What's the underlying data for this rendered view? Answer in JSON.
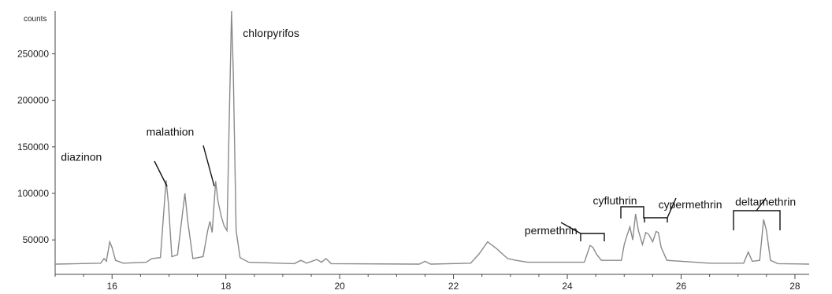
{
  "chart_data": {
    "type": "line",
    "title": "",
    "xlabel": "",
    "ylabel": "counts",
    "xlim": [
      15.0,
      28.25
    ],
    "ylim": [
      13000,
      296000
    ],
    "x_ticks": [
      16,
      18,
      20,
      22,
      24,
      26,
      28
    ],
    "y_ticks": [
      50000,
      100000,
      150000,
      200000,
      250000
    ],
    "y_tick_labels": [
      "50000",
      "100000",
      "150000",
      "200000",
      "250000"
    ],
    "grid": false,
    "line_color": "#8a8a8a",
    "series": [
      {
        "values": [
          [
            15.0,
            24000
          ],
          [
            15.4,
            24500
          ],
          [
            15.8,
            25000
          ],
          [
            15.86,
            30000
          ],
          [
            15.9,
            27000
          ],
          [
            15.96,
            48000
          ],
          [
            16.0,
            42000
          ],
          [
            16.06,
            28000
          ],
          [
            16.2,
            25000
          ],
          [
            16.6,
            26000
          ],
          [
            16.7,
            30000
          ],
          [
            16.85,
            31000
          ],
          [
            16.95,
            114000
          ],
          [
            16.99,
            90000
          ],
          [
            17.05,
            32000
          ],
          [
            17.15,
            34000
          ],
          [
            17.28,
            100000
          ],
          [
            17.33,
            70000
          ],
          [
            17.42,
            30000
          ],
          [
            17.6,
            32000
          ],
          [
            17.68,
            60000
          ],
          [
            17.72,
            70000
          ],
          [
            17.76,
            58000
          ],
          [
            17.82,
            113000
          ],
          [
            17.86,
            92000
          ],
          [
            17.92,
            75000
          ],
          [
            17.97,
            65000
          ],
          [
            18.02,
            60000
          ],
          [
            18.06,
            180000
          ],
          [
            18.1,
            296000
          ],
          [
            18.13,
            230000
          ],
          [
            18.18,
            60000
          ],
          [
            18.25,
            31000
          ],
          [
            18.4,
            26000
          ],
          [
            19.2,
            24500
          ],
          [
            19.32,
            28000
          ],
          [
            19.42,
            25000
          ],
          [
            19.6,
            29000
          ],
          [
            19.68,
            26000
          ],
          [
            19.76,
            30000
          ],
          [
            19.85,
            24500
          ],
          [
            21.4,
            24000
          ],
          [
            21.5,
            27000
          ],
          [
            21.6,
            24000
          ],
          [
            22.3,
            25000
          ],
          [
            22.45,
            35000
          ],
          [
            22.6,
            48000
          ],
          [
            22.75,
            41000
          ],
          [
            22.95,
            30000
          ],
          [
            23.1,
            28000
          ],
          [
            23.3,
            26000
          ],
          [
            24.3,
            26000
          ],
          [
            24.4,
            44000
          ],
          [
            24.45,
            42000
          ],
          [
            24.52,
            34000
          ],
          [
            24.6,
            28000
          ],
          [
            24.95,
            28000
          ],
          [
            25.0,
            45000
          ],
          [
            25.05,
            55000
          ],
          [
            25.1,
            64000
          ],
          [
            25.15,
            50000
          ],
          [
            25.2,
            78000
          ],
          [
            25.25,
            60000
          ],
          [
            25.32,
            45000
          ],
          [
            25.38,
            58000
          ],
          [
            25.43,
            56000
          ],
          [
            25.5,
            48000
          ],
          [
            25.56,
            59000
          ],
          [
            25.6,
            58000
          ],
          [
            25.65,
            42000
          ],
          [
            25.75,
            28000
          ],
          [
            26.5,
            25000
          ],
          [
            27.1,
            25000
          ],
          [
            27.18,
            37000
          ],
          [
            27.25,
            27000
          ],
          [
            27.38,
            28000
          ],
          [
            27.45,
            72000
          ],
          [
            27.5,
            60000
          ],
          [
            27.57,
            28000
          ],
          [
            27.7,
            24500
          ],
          [
            28.25,
            24000
          ]
        ]
      }
    ],
    "annotations": [
      {
        "text": "chlorpyrifos",
        "x": 18.3,
        "y": 268000
      },
      {
        "text": "malathion",
        "x": 16.6,
        "y": 162000
      },
      {
        "text": "diazinon",
        "x": 15.1,
        "y": 135000
      },
      {
        "text": "permethrin",
        "x": 23.25,
        "y": 56000
      },
      {
        "text": "cyfluthrin",
        "x": 24.45,
        "y": 88000
      },
      {
        "text": "cypermethrin",
        "x": 25.6,
        "y": 84000
      },
      {
        "text": "deltamethrin",
        "x": 26.95,
        "y": 87000
      }
    ]
  }
}
